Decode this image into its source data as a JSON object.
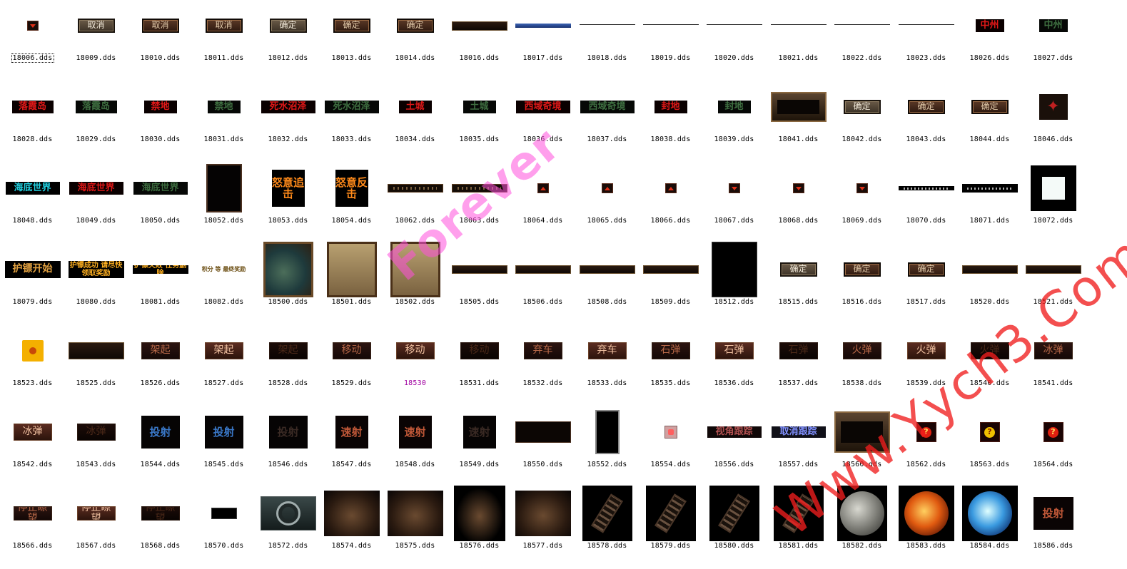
{
  "files": [
    [
      {
        "n": "18006.dds",
        "s": "t-tiny",
        "w": 16,
        "h": 14,
        "t": "",
        "sel": true
      },
      {
        "n": "18009.dds",
        "s": "t-btn",
        "w": 52,
        "h": 20,
        "t": "取消"
      },
      {
        "n": "18010.dds",
        "s": "t-btnr",
        "w": 52,
        "h": 20,
        "t": "取消"
      },
      {
        "n": "18011.dds",
        "s": "t-btnr",
        "w": 52,
        "h": 20,
        "t": "取消"
      },
      {
        "n": "18012.dds",
        "s": "t-btn",
        "w": 52,
        "h": 20,
        "t": "确定"
      },
      {
        "n": "18013.dds",
        "s": "t-btnr",
        "w": 52,
        "h": 20,
        "t": "确定"
      },
      {
        "n": "18014.dds",
        "s": "t-btnr",
        "w": 52,
        "h": 20,
        "t": "确定"
      },
      {
        "n": "18016.dds",
        "s": "t-bar",
        "w": 78,
        "h": 13,
        "t": ""
      },
      {
        "n": "18017.dds",
        "s": "t-blue",
        "w": 78,
        "h": 6,
        "t": ""
      },
      {
        "n": "18018.dds",
        "s": "t-line",
        "w": 78,
        "h": 4,
        "t": ""
      },
      {
        "n": "18019.dds",
        "s": "t-line",
        "w": 78,
        "h": 4,
        "t": ""
      },
      {
        "n": "18020.dds",
        "s": "t-line",
        "w": 78,
        "h": 4,
        "t": ""
      },
      {
        "n": "18021.dds",
        "s": "t-line",
        "w": 78,
        "h": 4,
        "t": ""
      },
      {
        "n": "18022.dds",
        "s": "t-line",
        "w": 78,
        "h": 4,
        "t": ""
      },
      {
        "n": "18023.dds",
        "s": "t-line",
        "w": 78,
        "h": 4,
        "t": ""
      },
      {
        "n": "18026.dds",
        "s": "t-red",
        "w": 40,
        "h": 18,
        "t": "中州"
      },
      {
        "n": "18027.dds",
        "s": "t-grn",
        "w": 40,
        "h": 18,
        "t": "中州"
      }
    ],
    [
      {
        "n": "18028.dds",
        "s": "t-red",
        "w": 58,
        "h": 18,
        "t": "落霞岛"
      },
      {
        "n": "18029.dds",
        "s": "t-grn",
        "w": 58,
        "h": 18,
        "t": "落霞岛"
      },
      {
        "n": "18030.dds",
        "s": "t-red",
        "w": 46,
        "h": 18,
        "t": "禁地"
      },
      {
        "n": "18031.dds",
        "s": "t-grn",
        "w": 46,
        "h": 18,
        "t": "禁地"
      },
      {
        "n": "18032.dds",
        "s": "t-red",
        "w": 76,
        "h": 18,
        "t": "死水沼泽"
      },
      {
        "n": "18033.dds",
        "s": "t-grn",
        "w": 76,
        "h": 18,
        "t": "死水沼泽"
      },
      {
        "n": "18034.dds",
        "s": "t-red",
        "w": 46,
        "h": 18,
        "t": "土城"
      },
      {
        "n": "18035.dds",
        "s": "t-grn",
        "w": 46,
        "h": 18,
        "t": "土城"
      },
      {
        "n": "18036.dds",
        "s": "t-red",
        "w": 76,
        "h": 18,
        "t": "西域奇境"
      },
      {
        "n": "18037.dds",
        "s": "t-grn",
        "w": 76,
        "h": 18,
        "t": "西域奇境"
      },
      {
        "n": "18038.dds",
        "s": "t-red",
        "w": 46,
        "h": 18,
        "t": "封地"
      },
      {
        "n": "18039.dds",
        "s": "t-grn",
        "w": 46,
        "h": 18,
        "t": "封地"
      },
      {
        "n": "18041.dds",
        "s": "t-frame",
        "w": 78,
        "h": 42,
        "t": ""
      },
      {
        "n": "18042.dds",
        "s": "t-btn",
        "w": 52,
        "h": 20,
        "t": "确定"
      },
      {
        "n": "18043.dds",
        "s": "t-btnr",
        "w": 52,
        "h": 20,
        "t": "确定"
      },
      {
        "n": "18044.dds",
        "s": "t-btnr",
        "w": 52,
        "h": 20,
        "t": "确定"
      },
      {
        "n": "18046.dds",
        "s": "t-gold2",
        "w": 40,
        "h": 36,
        "t": ""
      }
    ],
    [
      {
        "n": "18048.dds",
        "s": "t-cyan",
        "w": 76,
        "h": 18,
        "t": "海底世界"
      },
      {
        "n": "18049.dds",
        "s": "t-red",
        "w": 76,
        "h": 18,
        "t": "海底世界"
      },
      {
        "n": "18050.dds",
        "s": "t-grn",
        "w": 76,
        "h": 18,
        "t": "海底世界"
      },
      {
        "n": "18052.dds",
        "s": "t-dark",
        "w": 50,
        "h": 68,
        "t": ""
      },
      {
        "n": "18053.dds",
        "s": "t-orng",
        "w": 46,
        "h": 52,
        "t": "怒意追击"
      },
      {
        "n": "18054.dds",
        "s": "t-orng",
        "w": 46,
        "h": 52,
        "t": "怒意反击"
      },
      {
        "n": "18062.dds",
        "s": "t-dotbar",
        "w": 78,
        "h": 12,
        "t": ""
      },
      {
        "n": "18063.dds",
        "s": "t-dotbar",
        "w": 78,
        "h": 12,
        "t": ""
      },
      {
        "n": "18064.dds",
        "s": "t-tri",
        "w": 16,
        "h": 14,
        "t": ""
      },
      {
        "n": "18065.dds",
        "s": "t-tri",
        "w": 16,
        "h": 14,
        "t": ""
      },
      {
        "n": "18066.dds",
        "s": "t-tri",
        "w": 16,
        "h": 14,
        "t": ""
      },
      {
        "n": "18067.dds",
        "s": "t-tiny",
        "w": 16,
        "h": 14,
        "t": ""
      },
      {
        "n": "18068.dds",
        "s": "t-tiny",
        "w": 16,
        "h": 14,
        "t": ""
      },
      {
        "n": "18069.dds",
        "s": "t-tiny",
        "w": 16,
        "h": 14,
        "t": ""
      },
      {
        "n": "18070.dds",
        "s": "t-ornl",
        "w": 78,
        "h": 6,
        "t": ""
      },
      {
        "n": "18071.dds",
        "s": "t-ornl",
        "w": 78,
        "h": 12,
        "t": ""
      },
      {
        "n": "18072.dds",
        "s": "t-white",
        "w": 64,
        "h": 64,
        "t": ""
      }
    ],
    [
      {
        "n": "18079.dds",
        "s": "t-gold",
        "w": 78,
        "h": 24,
        "t": "护镖开始"
      },
      {
        "n": "18080.dds",
        "s": "t-yel",
        "w": 78,
        "h": 24,
        "t": "护镖成功 请尽快领取奖励"
      },
      {
        "n": "18081.dds",
        "s": "t-yel",
        "w": 78,
        "h": 12,
        "t": "护镖失败 任务删除"
      },
      {
        "n": "18082.dds",
        "s": "t-yel2",
        "w": 78,
        "h": 12,
        "t": "积分 等 最终奖励"
      },
      {
        "n": "18500.dds",
        "s": "t-map",
        "w": 70,
        "h": 78,
        "t": ""
      },
      {
        "n": "18501.dds",
        "s": "t-scroll",
        "w": 70,
        "h": 78,
        "t": ""
      },
      {
        "n": "18502.dds",
        "s": "t-scroll",
        "w": 70,
        "h": 78,
        "t": ""
      },
      {
        "n": "18505.dds",
        "s": "t-bar",
        "w": 78,
        "h": 12,
        "t": ""
      },
      {
        "n": "18506.dds",
        "s": "t-bar",
        "w": 78,
        "h": 12,
        "t": ""
      },
      {
        "n": "18508.dds",
        "s": "t-bar",
        "w": 78,
        "h": 12,
        "t": ""
      },
      {
        "n": "18509.dds",
        "s": "t-bar",
        "w": 78,
        "h": 12,
        "t": ""
      },
      {
        "n": "18512.dds",
        "s": "t-blk2",
        "w": 64,
        "h": 78,
        "t": ""
      },
      {
        "n": "18515.dds",
        "s": "t-btn",
        "w": 52,
        "h": 20,
        "t": "确定"
      },
      {
        "n": "18516.dds",
        "s": "t-btnr",
        "w": 52,
        "h": 20,
        "t": "确定"
      },
      {
        "n": "18517.dds",
        "s": "t-btnr",
        "w": 52,
        "h": 20,
        "t": "确定"
      },
      {
        "n": "18520.dds",
        "s": "t-bar",
        "w": 78,
        "h": 12,
        "t": ""
      },
      {
        "n": "18521.dds",
        "s": "t-bar",
        "w": 78,
        "h": 12,
        "t": ""
      }
    ],
    [
      {
        "n": "18523.dds",
        "s": "t-ball",
        "w": 30,
        "h": 30,
        "t": ""
      },
      {
        "n": "18525.dds",
        "s": "t-bar",
        "w": 78,
        "h": 24,
        "t": ""
      },
      {
        "n": "18526.dds",
        "s": "t-dkbtn",
        "w": 54,
        "h": 24,
        "t": "架起"
      },
      {
        "n": "18527.dds",
        "s": "t-dkbtn2",
        "w": 54,
        "h": 24,
        "t": "架起"
      },
      {
        "n": "18528.dds",
        "s": "t-dkbtn0",
        "w": 54,
        "h": 24,
        "t": "架起"
      },
      {
        "n": "18529.dds",
        "s": "t-dkbtn",
        "w": 54,
        "h": 24,
        "t": "移动"
      },
      {
        "n": "18530",
        "s": "t-dkbtn2",
        "w": 54,
        "h": 24,
        "t": "移动",
        "mag": true
      },
      {
        "n": "18531.dds",
        "s": "t-dkbtn0",
        "w": 54,
        "h": 24,
        "t": "移动"
      },
      {
        "n": "18532.dds",
        "s": "t-dkbtn",
        "w": 54,
        "h": 24,
        "t": "弃车"
      },
      {
        "n": "18533.dds",
        "s": "t-dkbtn2",
        "w": 54,
        "h": 24,
        "t": "弃车"
      },
      {
        "n": "18535.dds",
        "s": "t-dkbtn",
        "w": 54,
        "h": 24,
        "t": "石弹"
      },
      {
        "n": "18536.dds",
        "s": "t-dkbtn2",
        "w": 54,
        "h": 24,
        "t": "石弹"
      },
      {
        "n": "18537.dds",
        "s": "t-dkbtn0",
        "w": 54,
        "h": 24,
        "t": "石弹"
      },
      {
        "n": "18538.dds",
        "s": "t-dkbtn",
        "w": 54,
        "h": 24,
        "t": "火弹"
      },
      {
        "n": "18539.dds",
        "s": "t-dkbtn2",
        "w": 54,
        "h": 24,
        "t": "火弹"
      },
      {
        "n": "18540.dds",
        "s": "t-dkbtn0",
        "w": 54,
        "h": 24,
        "t": "火弹"
      },
      {
        "n": "18541.dds",
        "s": "t-dkbtn",
        "w": 54,
        "h": 24,
        "t": "冰弹"
      }
    ],
    [
      {
        "n": "18542.dds",
        "s": "t-dkbtn2",
        "w": 54,
        "h": 24,
        "t": "冰弹"
      },
      {
        "n": "18543.dds",
        "s": "t-dkbtn0",
        "w": 54,
        "h": 24,
        "t": "冰弹"
      },
      {
        "n": "18544.dds",
        "s": "t-tb",
        "w": 54,
        "h": 46,
        "t": "投射"
      },
      {
        "n": "18545.dds",
        "s": "t-tb",
        "w": 54,
        "h": 46,
        "t": "投射"
      },
      {
        "n": "18546.dds",
        "s": "t-t0",
        "w": 54,
        "h": 46,
        "t": "投射"
      },
      {
        "n": "18547.dds",
        "s": "t-tr",
        "w": 46,
        "h": 46,
        "t": "速射"
      },
      {
        "n": "18548.dds",
        "s": "t-tr",
        "w": 46,
        "h": 46,
        "t": "速射"
      },
      {
        "n": "18549.dds",
        "s": "t-t0",
        "w": 46,
        "h": 46,
        "t": "速射"
      },
      {
        "n": "18550.dds",
        "s": "t-panel",
        "w": 78,
        "h": 30,
        "t": ""
      },
      {
        "n": "18552.dds",
        "s": "t-blk",
        "w": 34,
        "h": 62,
        "t": ""
      },
      {
        "n": "18554.dds",
        "s": "t-pink",
        "w": 18,
        "h": 18,
        "t": ""
      },
      {
        "n": "18556.dds",
        "s": "t-track2",
        "w": 76,
        "h": 16,
        "t": "视角跟踪"
      },
      {
        "n": "18557.dds",
        "s": "t-track",
        "w": 76,
        "h": 16,
        "t": "取消跟踪"
      },
      {
        "n": "18560.dds",
        "s": "t-frame",
        "w": 78,
        "h": 58,
        "t": ""
      },
      {
        "n": "18562.dds",
        "s": "t-q",
        "w": 28,
        "h": 28,
        "t": ""
      },
      {
        "n": "18563.dds",
        "s": "t-q t-qy",
        "w": 28,
        "h": 28,
        "t": ""
      },
      {
        "n": "18564.dds",
        "s": "t-q",
        "w": 28,
        "h": 28,
        "t": ""
      }
    ],
    [
      {
        "n": "18566.dds",
        "s": "t-dkbtn",
        "w": 54,
        "h": 20,
        "t": "停止瞭望"
      },
      {
        "n": "18567.dds",
        "s": "t-dkbtn2",
        "w": 54,
        "h": 20,
        "t": "停止瞭望"
      },
      {
        "n": "18568.dds",
        "s": "t-dkbtn0",
        "w": 54,
        "h": 20,
        "t": "停止瞭望"
      },
      {
        "n": "18570.dds",
        "s": "t-blk2",
        "w": 36,
        "h": 16,
        "t": ""
      },
      {
        "n": "18572.dds",
        "s": "t-sight",
        "w": 78,
        "h": 48,
        "t": ""
      },
      {
        "n": "18574.dds",
        "s": "t-cat",
        "w": 78,
        "h": 64,
        "t": ""
      },
      {
        "n": "18575.dds",
        "s": "t-cat",
        "w": 78,
        "h": 64,
        "t": ""
      },
      {
        "n": "18576.dds",
        "s": "t-cat bk",
        "w": 72,
        "h": 78,
        "t": ""
      },
      {
        "n": "18577.dds",
        "s": "t-cat",
        "w": 78,
        "h": 64,
        "t": ""
      },
      {
        "n": "18578.dds",
        "s": "t-lad",
        "w": 70,
        "h": 78,
        "t": ""
      },
      {
        "n": "18579.dds",
        "s": "t-lad",
        "w": 70,
        "h": 78,
        "t": ""
      },
      {
        "n": "18580.dds",
        "s": "t-lad",
        "w": 70,
        "h": 78,
        "t": ""
      },
      {
        "n": "18581.dds",
        "s": "t-lad",
        "w": 70,
        "h": 78,
        "t": ""
      },
      {
        "n": "18582.dds",
        "s": "t-stone",
        "w": 70,
        "h": 78,
        "t": ""
      },
      {
        "n": "18583.dds",
        "s": "t-stone t-fire",
        "w": 78,
        "h": 78,
        "t": ""
      },
      {
        "n": "18584.dds",
        "s": "t-stone t-ice",
        "w": 78,
        "h": 78,
        "t": ""
      },
      {
        "n": "18586.dds",
        "s": "t-tr",
        "w": 56,
        "h": 46,
        "t": "投射"
      }
    ]
  ],
  "watermarks": {
    "primary": "Forever",
    "secondary": "Www.Yych3.Com"
  }
}
